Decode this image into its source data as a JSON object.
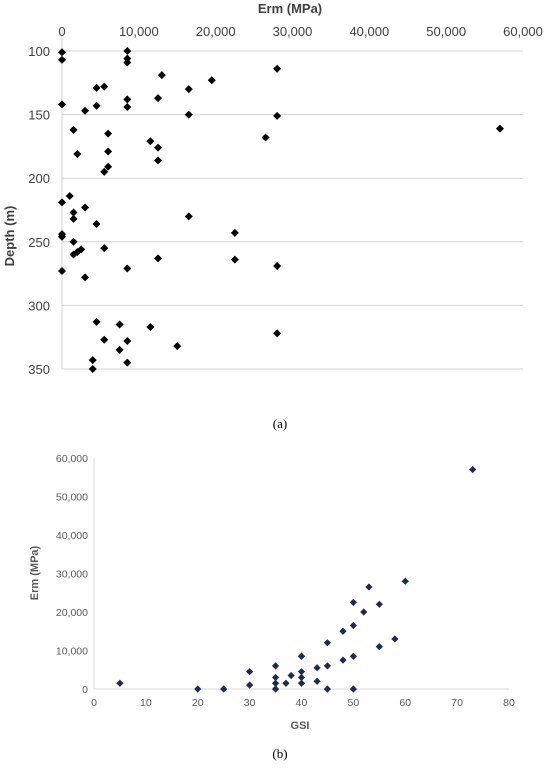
{
  "chart_data": [
    {
      "type": "scatter",
      "panel": "(a)",
      "xlabel": "Erm (MPa)",
      "ylabel": "Depth (m)",
      "xlim": [
        0,
        60000
      ],
      "ylim": [
        350,
        100
      ],
      "x_axis_position": "top",
      "y_axis_inverted": true,
      "grid": "horizontal",
      "x_ticks": [
        "0",
        "10,000",
        "20,000",
        "30,000",
        "40,000",
        "50,000",
        "60,000"
      ],
      "y_ticks": [
        "100",
        "150",
        "200",
        "250",
        "300",
        "350"
      ],
      "marker_color": "#000000",
      "points": [
        [
          0,
          101
        ],
        [
          0,
          107
        ],
        [
          8500,
          100
        ],
        [
          8500,
          106
        ],
        [
          8500,
          109
        ],
        [
          28000,
          114
        ],
        [
          4500,
          129
        ],
        [
          5500,
          128
        ],
        [
          13000,
          119
        ],
        [
          19500,
          123
        ],
        [
          16500,
          130
        ],
        [
          0,
          142
        ],
        [
          4500,
          143
        ],
        [
          8500,
          138
        ],
        [
          12500,
          137
        ],
        [
          8500,
          144
        ],
        [
          3000,
          147
        ],
        [
          16500,
          150
        ],
        [
          28000,
          151
        ],
        [
          57000,
          161
        ],
        [
          1500,
          162
        ],
        [
          6000,
          165
        ],
        [
          11500,
          171
        ],
        [
          12500,
          176
        ],
        [
          26500,
          168
        ],
        [
          2000,
          181
        ],
        [
          6000,
          179
        ],
        [
          12500,
          186
        ],
        [
          6000,
          191
        ],
        [
          5500,
          195
        ],
        [
          1000,
          214
        ],
        [
          0,
          219
        ],
        [
          3000,
          223
        ],
        [
          1500,
          227
        ],
        [
          1500,
          232
        ],
        [
          16500,
          230
        ],
        [
          4500,
          236
        ],
        [
          0,
          244
        ],
        [
          0,
          246
        ],
        [
          22500,
          243
        ],
        [
          1500,
          250
        ],
        [
          5500,
          255
        ],
        [
          2500,
          256
        ],
        [
          2000,
          258
        ],
        [
          1500,
          260
        ],
        [
          12500,
          263
        ],
        [
          22500,
          264
        ],
        [
          0,
          273
        ],
        [
          8500,
          271
        ],
        [
          28000,
          269
        ],
        [
          3000,
          278
        ],
        [
          4500,
          313
        ],
        [
          7500,
          315
        ],
        [
          11500,
          317
        ],
        [
          28000,
          322
        ],
        [
          8500,
          328
        ],
        [
          5500,
          327
        ],
        [
          15000,
          332
        ],
        [
          7500,
          335
        ],
        [
          4000,
          343
        ],
        [
          8500,
          345
        ],
        [
          4000,
          350
        ]
      ]
    },
    {
      "type": "scatter",
      "panel": "(b)",
      "xlabel": "GSI",
      "ylabel": "Erm (MPa)",
      "xlim": [
        0,
        80
      ],
      "ylim": [
        0,
        60000
      ],
      "grid": "none",
      "x_ticks": [
        "0",
        "10",
        "20",
        "30",
        "40",
        "50",
        "60",
        "70",
        "80"
      ],
      "y_ticks": [
        "0",
        "10,000",
        "20,000",
        "30,000",
        "40,000",
        "50,000",
        "60,000"
      ],
      "marker_color": "#1f2a4d",
      "points": [
        [
          5,
          1500
        ],
        [
          20,
          0
        ],
        [
          25,
          0
        ],
        [
          30,
          4500
        ],
        [
          30,
          1000
        ],
        [
          35,
          6000
        ],
        [
          35,
          3000
        ],
        [
          35,
          1500
        ],
        [
          35,
          0
        ],
        [
          37,
          1500
        ],
        [
          38,
          3500
        ],
        [
          40,
          8500
        ],
        [
          40,
          8500
        ],
        [
          40,
          4500
        ],
        [
          40,
          3000
        ],
        [
          40,
          1500
        ],
        [
          43,
          5500
        ],
        [
          43,
          2000
        ],
        [
          45,
          12000
        ],
        [
          45,
          6000
        ],
        [
          45,
          0
        ],
        [
          48,
          15000
        ],
        [
          48,
          7500
        ],
        [
          50,
          22500
        ],
        [
          50,
          16500
        ],
        [
          50,
          8500
        ],
        [
          50,
          0
        ],
        [
          52,
          20000
        ],
        [
          53,
          26500
        ],
        [
          55,
          22000
        ],
        [
          55,
          11000
        ],
        [
          58,
          13000
        ],
        [
          60,
          28000
        ],
        [
          73,
          57000
        ]
      ]
    }
  ],
  "captions": {
    "panel_a": "(a)",
    "panel_b": "(b)"
  }
}
